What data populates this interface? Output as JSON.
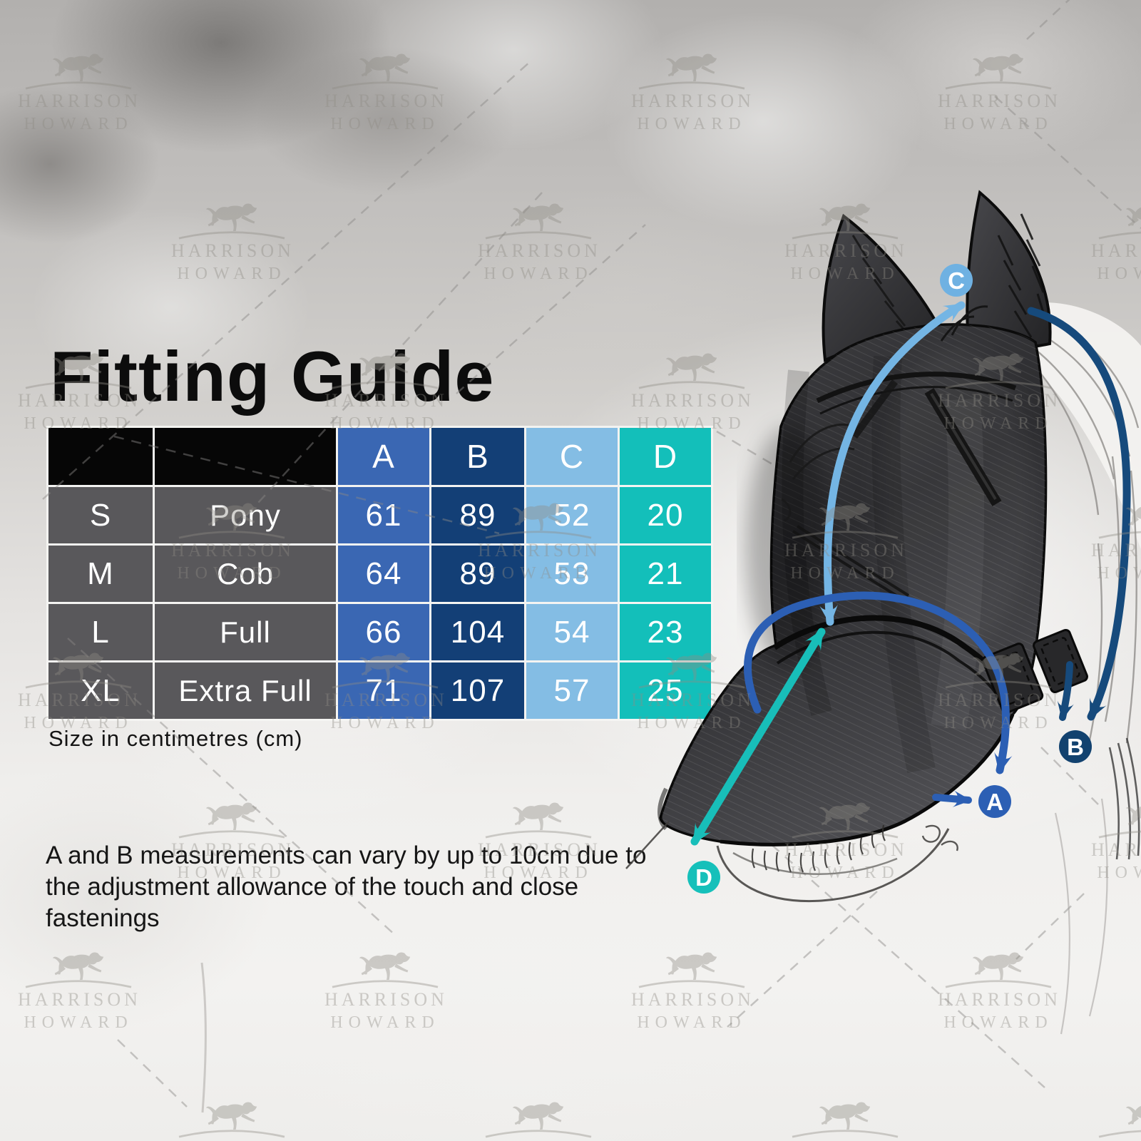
{
  "title": "Fitting Guide",
  "watermark": {
    "line1": "HARRISON",
    "line2": "HOWARD"
  },
  "table": {
    "col_headers": [
      "A",
      "B",
      "C",
      "D"
    ],
    "rows": [
      {
        "size": "S",
        "name": "Pony",
        "a": "61",
        "b": "89",
        "c": "52",
        "d": "20"
      },
      {
        "size": "M",
        "name": "Cob",
        "a": "64",
        "b": "89",
        "c": "53",
        "d": "21"
      },
      {
        "size": "L",
        "name": "Full",
        "a": "66",
        "b": "104",
        "c": "54",
        "d": "23"
      },
      {
        "size": "XL",
        "name": "Extra Full",
        "a": "71",
        "b": "107",
        "c": "57",
        "d": "25"
      }
    ],
    "caption": "Size in centimetres (cm)"
  },
  "note": "A and B measurements can vary by up to 10cm due to the adjustment allowance of the touch and close fastenings",
  "diagram": {
    "labels": {
      "a": "A",
      "b": "B",
      "c": "C",
      "d": "D"
    }
  },
  "colors": {
    "col_a": "#3a67b3",
    "col_b": "#133f76",
    "col_c": "#84bde4",
    "col_d": "#13bfba",
    "row_gray": "#59585b",
    "header_black": "#060606",
    "badge_a": "#2c5fb4",
    "badge_b": "#12426f",
    "badge_c": "#6fb1e2",
    "badge_d": "#16c0ba",
    "arrow_a": "#2c5fb4",
    "arrow_b": "#164a7c",
    "arrow_c": "#74b5e4",
    "arrow_d": "#18beb9"
  }
}
